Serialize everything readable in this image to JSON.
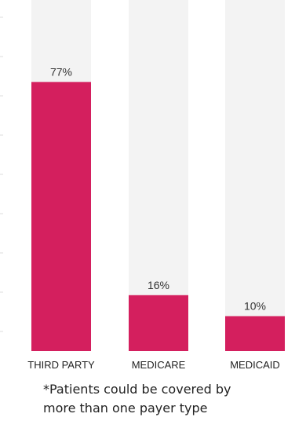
{
  "chart_data": {
    "type": "bar",
    "categories": [
      "THIRD PARTY",
      "MEDICARE",
      "MEDICAID"
    ],
    "values": [
      77,
      16,
      10
    ],
    "value_labels": [
      "77%",
      "16%",
      "10%"
    ],
    "ylim": [
      0,
      100
    ],
    "grid": false,
    "legend": "none",
    "colors": {
      "bar": "#d41f5e",
      "track": "#f3f3f3"
    }
  },
  "footnote": {
    "line1": "*Patients could be covered by",
    "line2": "more than one payer type"
  }
}
